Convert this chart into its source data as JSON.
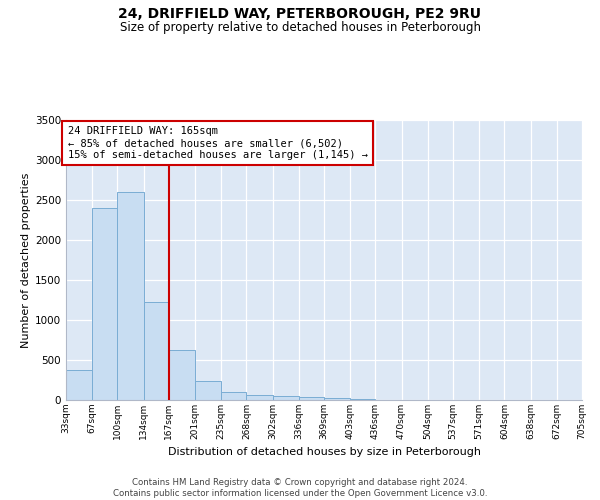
{
  "title1": "24, DRIFFIELD WAY, PETERBOROUGH, PE2 9RU",
  "title2": "Size of property relative to detached houses in Peterborough",
  "xlabel": "Distribution of detached houses by size in Peterborough",
  "ylabel": "Number of detached properties",
  "footer1": "Contains HM Land Registry data © Crown copyright and database right 2024.",
  "footer2": "Contains public sector information licensed under the Open Government Licence v3.0.",
  "annotation_line1": "24 DRIFFIELD WAY: 165sqm",
  "annotation_line2": "← 85% of detached houses are smaller (6,502)",
  "annotation_line3": "15% of semi-detached houses are larger (1,145) →",
  "bar_color": "#c8ddf2",
  "bar_edge_color": "#7aadd4",
  "vline_color": "#cc0000",
  "background_color": "#dde8f5",
  "ylim_max": 3500,
  "yticks": [
    0,
    500,
    1000,
    1500,
    2000,
    2500,
    3000,
    3500
  ],
  "bin_edges": [
    33,
    67,
    100,
    134,
    167,
    201,
    235,
    268,
    302,
    336,
    369,
    403,
    436,
    470,
    504,
    537,
    571,
    604,
    638,
    672,
    705
  ],
  "bin_labels": [
    "33sqm",
    "67sqm",
    "100sqm",
    "134sqm",
    "167sqm",
    "201sqm",
    "235sqm",
    "268sqm",
    "302sqm",
    "336sqm",
    "369sqm",
    "403sqm",
    "436sqm",
    "470sqm",
    "504sqm",
    "537sqm",
    "571sqm",
    "604sqm",
    "638sqm",
    "672sqm",
    "705sqm"
  ],
  "counts": [
    380,
    2400,
    2600,
    1220,
    620,
    240,
    100,
    60,
    50,
    40,
    30,
    10,
    5,
    5,
    3,
    2,
    2,
    1,
    1,
    1
  ],
  "vline_x": 167
}
